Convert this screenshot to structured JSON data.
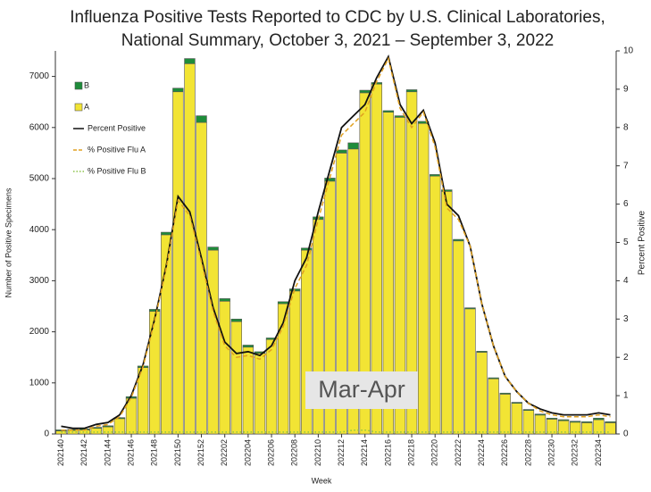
{
  "chart_data": {
    "type": "bar",
    "title": [
      "Influenza Positive Tests Reported to CDC by U.S. Clinical Laboratories,",
      "National Summary, October 3, 2021 – September 3, 2022"
    ],
    "y_label": "Number of Positive Specimens",
    "y2_label": "Percent Positive",
    "x_label": "Week",
    "annotation": "Mar-Apr",
    "categories": [
      "202140",
      null,
      "202142",
      null,
      "202144",
      null,
      "202146",
      null,
      "202148",
      null,
      "202150",
      null,
      "202152",
      null,
      "202202",
      null,
      "202204",
      null,
      "202206",
      null,
      "202208",
      null,
      "202210",
      null,
      "202212",
      null,
      "202214",
      null,
      "202216",
      null,
      "202218",
      null,
      "202220",
      null,
      "202222",
      null,
      "202224",
      null,
      "202226",
      null,
      "202228",
      null,
      "202230",
      null,
      "202232",
      null,
      "202234",
      null
    ],
    "series": [
      {
        "name": "B",
        "type": "bar",
        "color": "#1e8c3a",
        "values": [
          20,
          20,
          20,
          20,
          20,
          20,
          30,
          30,
          40,
          50,
          70,
          100,
          130,
          60,
          50,
          50,
          40,
          30,
          30,
          40,
          40,
          40,
          50,
          60,
          60,
          120,
          50,
          30,
          30,
          30,
          40,
          40,
          30,
          30,
          30,
          20,
          20,
          20,
          20,
          20,
          20,
          20,
          20,
          20,
          20,
          20,
          30,
          20
        ]
      },
      {
        "name": "A",
        "type": "bar",
        "color": "#f2e434",
        "values": [
          60,
          70,
          80,
          110,
          140,
          300,
          700,
          1300,
          2400,
          3900,
          6700,
          7250,
          6100,
          3600,
          2600,
          2200,
          1700,
          1580,
          1850,
          2550,
          2800,
          3600,
          4200,
          4950,
          5500,
          5580,
          6680,
          6850,
          6300,
          6200,
          6700,
          6080,
          5050,
          4750,
          3780,
          2450,
          1600,
          1080,
          780,
          600,
          460,
          370,
          290,
          260,
          230,
          220,
          280,
          220
        ]
      },
      {
        "name": "Percent Positive",
        "type": "line",
        "axis": "y2",
        "color": "#111111",
        "dash": "solid",
        "values": [
          0.2,
          0.15,
          0.15,
          0.25,
          0.3,
          0.5,
          1.0,
          1.8,
          3.0,
          4.4,
          6.2,
          5.8,
          4.6,
          3.3,
          2.4,
          2.1,
          2.15,
          2.05,
          2.3,
          2.9,
          4.0,
          4.6,
          5.8,
          6.9,
          8.0,
          8.3,
          8.6,
          9.3,
          9.85,
          8.6,
          8.1,
          8.45,
          7.6,
          6.0,
          5.7,
          4.9,
          3.4,
          2.3,
          1.5,
          1.1,
          0.8,
          0.65,
          0.55,
          0.5,
          0.5,
          0.5,
          0.55,
          0.5
        ]
      },
      {
        "name": "% Positive Flu A",
        "type": "line",
        "axis": "y2",
        "color": "#e0a020",
        "dash": "dashed",
        "values": [
          0.1,
          0.1,
          0.1,
          0.2,
          0.25,
          0.45,
          0.95,
          1.75,
          2.95,
          4.35,
          6.1,
          5.7,
          4.5,
          3.2,
          2.3,
          2.0,
          2.05,
          1.95,
          2.2,
          2.8,
          3.8,
          4.4,
          5.6,
          6.7,
          7.8,
          8.1,
          8.4,
          9.2,
          9.8,
          8.5,
          8.0,
          8.4,
          7.5,
          5.9,
          5.6,
          4.9,
          3.4,
          2.3,
          1.5,
          1.1,
          0.8,
          0.6,
          0.5,
          0.45,
          0.45,
          0.45,
          0.5,
          0.45
        ]
      },
      {
        "name": "% Positive Flu B",
        "type": "line",
        "axis": "y2",
        "color": "#8bc34a",
        "dash": "dotted",
        "values": [
          0.05,
          0.05,
          0.05,
          0.05,
          0.05,
          0.05,
          0.05,
          0.05,
          0.05,
          0.05,
          0.05,
          0.05,
          0.05,
          0.05,
          0.05,
          0.05,
          0.05,
          0.05,
          0.05,
          0.05,
          0.05,
          0.05,
          0.05,
          0.05,
          0.05,
          0.1,
          0.1,
          0.05,
          0.05,
          0.05,
          0.05,
          0.05,
          0.05,
          0.05,
          0.05,
          0.05,
          0.05,
          0.05,
          0.05,
          0.05,
          0.05,
          0.05,
          0.05,
          0.05,
          0.05,
          0.05,
          0.05,
          0.05
        ]
      }
    ],
    "ylim": [
      0,
      7500
    ],
    "yticks": [
      0,
      1000,
      2000,
      3000,
      4000,
      5000,
      6000,
      7000
    ],
    "y2lim": [
      0,
      10
    ],
    "y2ticks": [
      0,
      1,
      2,
      3,
      4,
      5,
      6,
      7,
      8,
      9,
      10
    ]
  }
}
